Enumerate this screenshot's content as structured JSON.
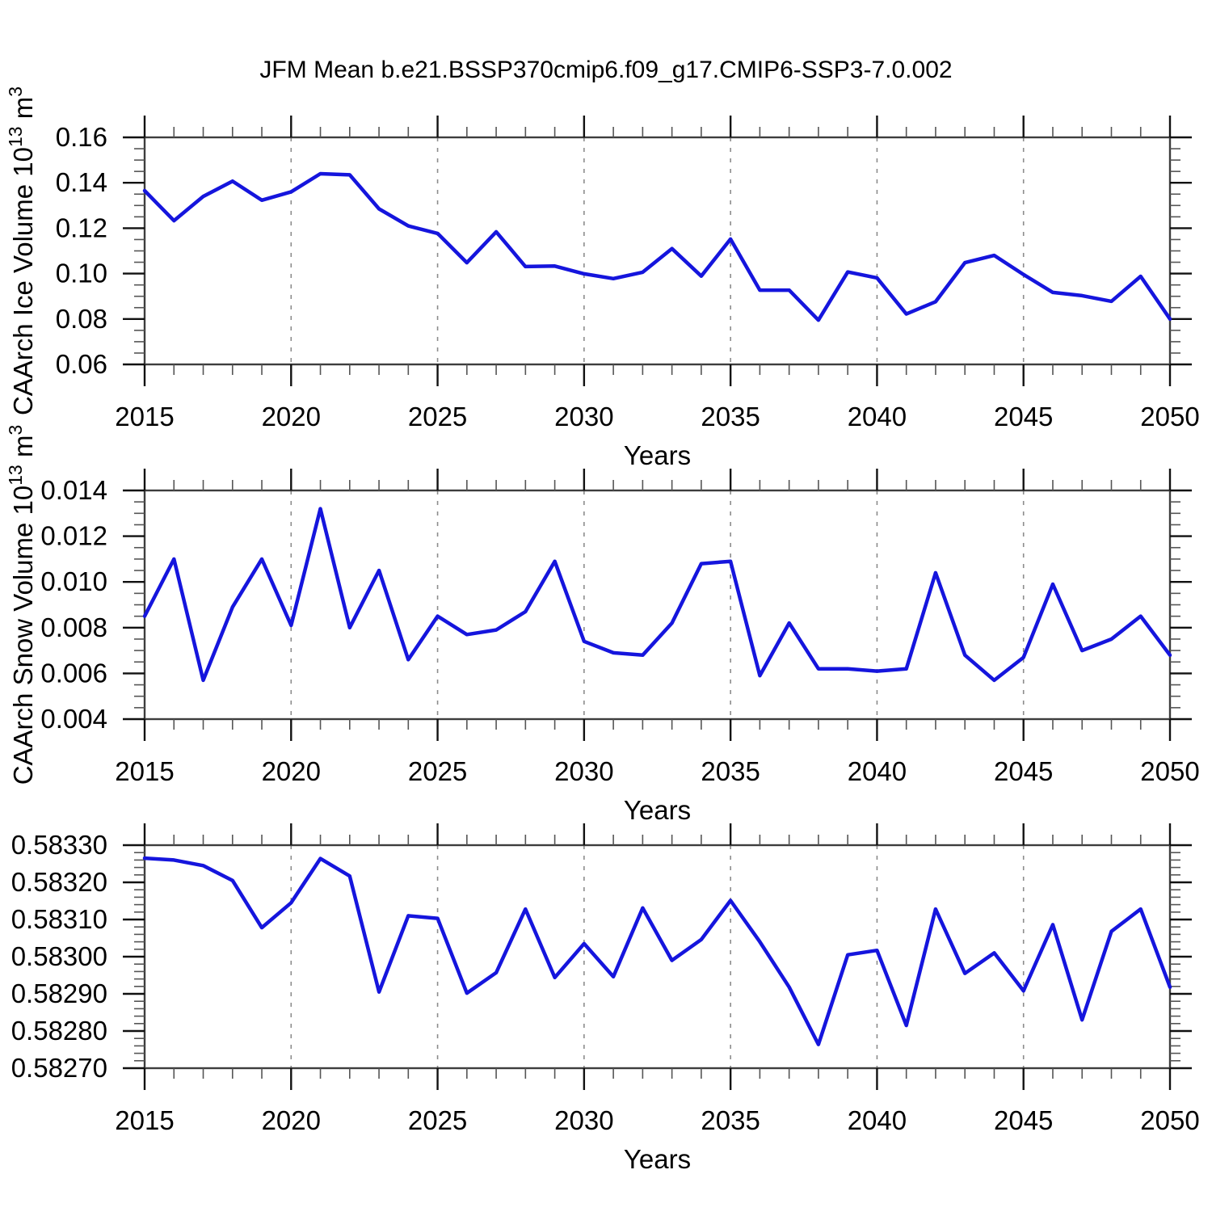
{
  "title": "JFM Mean b.e21.BSSP370cmip6.f09_g17.CMIP6-SSP3-7.0.002",
  "colors": {
    "line": "#1515dd",
    "frame": "#3d3d3d",
    "grid": "#8c8c8c",
    "tick_major": "#111111",
    "tick_minor": "#555555",
    "text": "#000000"
  },
  "chart_data": [
    {
      "type": "line",
      "name": "ice-volume",
      "title": "",
      "xlabel": "Years",
      "ylabel_segments": [
        {
          "text": "CAArch Ice Volume 10"
        },
        {
          "text": "13",
          "sup": true
        },
        {
          "text": " m"
        },
        {
          "text": "3",
          "sup": true
        }
      ],
      "xlim": [
        2015,
        2050
      ],
      "xtick_step": 5,
      "xminor_step": 1,
      "grid_x": [
        2020,
        2025,
        2030,
        2035,
        2040,
        2045
      ],
      "ylim": [
        0.06,
        0.16
      ],
      "ytick_step": 0.02,
      "yminor_step": 0.005,
      "ydecimals": 2,
      "x": [
        2015,
        2016,
        2017,
        2018,
        2019,
        2020,
        2021,
        2022,
        2023,
        2024,
        2025,
        2026,
        2027,
        2028,
        2029,
        2030,
        2031,
        2032,
        2033,
        2034,
        2035,
        2036,
        2037,
        2038,
        2039,
        2040,
        2041,
        2042,
        2043,
        2044,
        2045,
        2046,
        2047,
        2048,
        2049,
        2050
      ],
      "values": [
        0.1365,
        0.1233,
        0.134,
        0.1407,
        0.1323,
        0.136,
        0.144,
        0.1435,
        0.1285,
        0.121,
        0.1177,
        0.1048,
        0.1184,
        0.1031,
        0.1033,
        0.0999,
        0.0978,
        0.1006,
        0.111,
        0.0989,
        0.1152,
        0.0927,
        0.0927,
        0.0795,
        0.1007,
        0.0981,
        0.0822,
        0.0876,
        0.1048,
        0.108,
        0.0996,
        0.0917,
        0.0903,
        0.0878,
        0.0988,
        0.08
      ]
    },
    {
      "type": "line",
      "name": "snow-volume",
      "title": "",
      "xlabel": "Years",
      "ylabel_segments": [
        {
          "text": "CAArch Snow Volume 10"
        },
        {
          "text": "13",
          "sup": true
        },
        {
          "text": " m"
        },
        {
          "text": "3",
          "sup": true
        }
      ],
      "xlim": [
        2015,
        2050
      ],
      "xtick_step": 5,
      "xminor_step": 1,
      "grid_x": [
        2020,
        2025,
        2030,
        2035,
        2040,
        2045
      ],
      "ylim": [
        0.004,
        0.014
      ],
      "ytick_step": 0.002,
      "yminor_step": 0.0005,
      "ydecimals": 3,
      "x": [
        2015,
        2016,
        2017,
        2018,
        2019,
        2020,
        2021,
        2022,
        2023,
        2024,
        2025,
        2026,
        2027,
        2028,
        2029,
        2030,
        2031,
        2032,
        2033,
        2034,
        2035,
        2036,
        2037,
        2038,
        2039,
        2040,
        2041,
        2042,
        2043,
        2044,
        2045,
        2046,
        2047,
        2048,
        2049,
        2050
      ],
      "values": [
        0.0085,
        0.011,
        0.0057,
        0.0089,
        0.011,
        0.0081,
        0.0132,
        0.008,
        0.0105,
        0.0066,
        0.0085,
        0.0077,
        0.0079,
        0.0087,
        0.0109,
        0.0074,
        0.0069,
        0.0068,
        0.0082,
        0.0108,
        0.0109,
        0.0059,
        0.0082,
        0.0062,
        0.0062,
        0.0061,
        0.0062,
        0.0104,
        0.0068,
        0.0057,
        0.0067,
        0.0099,
        0.007,
        0.0075,
        0.0085,
        0.0068
      ]
    },
    {
      "type": "line",
      "name": "third-series",
      "title": "",
      "xlabel": "Years",
      "ylabel_segments": [],
      "xlim": [
        2015,
        2050
      ],
      "xtick_step": 5,
      "xminor_step": 1,
      "grid_x": [
        2020,
        2025,
        2030,
        2035,
        2040,
        2045
      ],
      "ylim": [
        0.5827,
        0.5833
      ],
      "ytick_step": 0.0001,
      "yminor_step": 2e-05,
      "ydecimals": 5,
      "x": [
        2015,
        2016,
        2017,
        2018,
        2019,
        2020,
        2021,
        2022,
        2023,
        2024,
        2025,
        2026,
        2027,
        2028,
        2029,
        2030,
        2031,
        2032,
        2033,
        2034,
        2035,
        2036,
        2037,
        2038,
        2039,
        2040,
        2041,
        2042,
        2043,
        2044,
        2045,
        2046,
        2047,
        2048,
        2049,
        2050
      ],
      "values": [
        0.583265,
        0.58326,
        0.583245,
        0.583205,
        0.583078,
        0.583145,
        0.583264,
        0.583217,
        0.582905,
        0.58311,
        0.583103,
        0.582902,
        0.582957,
        0.583128,
        0.582944,
        0.583035,
        0.582946,
        0.583131,
        0.58299,
        0.583046,
        0.583151,
        0.58304,
        0.582918,
        0.582764,
        0.583005,
        0.583017,
        0.582815,
        0.583128,
        0.582955,
        0.58301,
        0.582908,
        0.583086,
        0.58283,
        0.583068,
        0.583128,
        0.582918
      ]
    }
  ]
}
